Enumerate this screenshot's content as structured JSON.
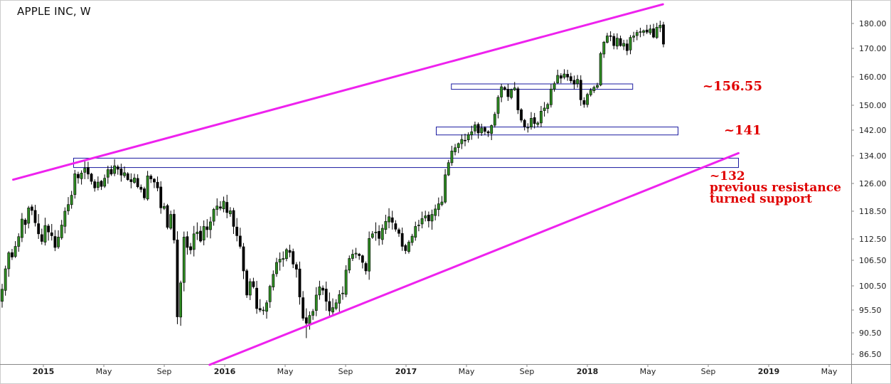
{
  "chart_data": {
    "type": "candlestick",
    "title": "APPLE INC, W",
    "y_ticks": [
      "180.00",
      "170.00",
      "160.00",
      "150.00",
      "142.00",
      "134.00",
      "126.00",
      "118.50",
      "112.50",
      "106.50",
      "100.50",
      "95.50",
      "90.50",
      "86.50"
    ],
    "y_tick_values": [
      180,
      170,
      160,
      150,
      142,
      134,
      126,
      118.5,
      112.5,
      106.5,
      100.5,
      95.5,
      90.5,
      86.5
    ],
    "x_ticks": [
      {
        "label": "2015",
        "bold": true,
        "date": "2015-01"
      },
      {
        "label": "May",
        "bold": false,
        "date": "2015-05"
      },
      {
        "label": "Sep",
        "bold": false,
        "date": "2015-09"
      },
      {
        "label": "2016",
        "bold": true,
        "date": "2016-01"
      },
      {
        "label": "May",
        "bold": false,
        "date": "2016-05"
      },
      {
        "label": "Sep",
        "bold": false,
        "date": "2016-09"
      },
      {
        "label": "2017",
        "bold": true,
        "date": "2017-01"
      },
      {
        "label": "May",
        "bold": false,
        "date": "2017-05"
      },
      {
        "label": "Sep",
        "bold": false,
        "date": "2017-09"
      },
      {
        "label": "2018",
        "bold": true,
        "date": "2018-01"
      },
      {
        "label": "May",
        "bold": false,
        "date": "2018-05"
      },
      {
        "label": "Sep",
        "bold": false,
        "date": "2018-09"
      },
      {
        "label": "2019",
        "bold": true,
        "date": "2019-01"
      },
      {
        "label": "May",
        "bold": false,
        "date": "2019-05"
      }
    ],
    "closes": [
      99.8,
      104.5,
      108.6,
      107.4,
      110.4,
      113.0,
      116.8,
      115.6,
      119.4,
      118.7,
      116.0,
      113.6,
      111.8,
      115.4,
      114.0,
      113.2,
      110.1,
      112.9,
      115.5,
      118.5,
      120.3,
      122.8,
      128.8,
      127.6,
      129.0,
      130.4,
      128.7,
      126.6,
      124.8,
      126.4,
      125.2,
      127.5,
      130.0,
      128.7,
      131.1,
      130.1,
      128.4,
      129.1,
      127.1,
      126.5,
      127.6,
      125.1,
      124.4,
      122.1,
      128.2,
      127.3,
      126.4,
      124.8,
      119.4,
      119.8,
      115.0,
      117.8,
      112.2,
      94.0,
      101.2,
      112.9,
      110.1,
      109.4,
      113.6,
      114.0,
      111.9,
      115.2,
      114.5,
      116.2,
      119.0,
      119.9,
      119.3,
      121.2,
      118.2,
      118.6,
      115.2,
      113.2,
      110.4,
      104.0,
      98.6,
      101.5,
      100.3,
      95.8,
      95.5,
      95.5,
      97.0,
      100.4,
      103.2,
      106.0,
      106.8,
      107.0,
      109.5,
      108.7,
      105.6,
      104.4,
      98.2,
      93.7,
      92.6,
      94.3,
      95.2,
      98.6,
      100.3,
      99.6,
      97.3,
      95.3,
      96.0,
      97.0,
      98.7,
      99.0,
      104.2,
      107.0,
      108.2,
      108.5,
      107.8,
      106.0,
      104.0,
      112.6,
      113.6,
      114.0,
      112.6,
      114.8,
      116.3,
      117.3,
      116.1,
      114.6,
      113.7,
      110.4,
      109.2,
      111.6,
      113.1,
      115.2,
      115.5,
      116.9,
      117.5,
      116.4,
      117.8,
      119.1,
      120.5,
      121.0,
      128.5,
      132.0,
      135.5,
      136.5,
      137.8,
      139.1,
      138.7,
      140.6,
      141.5,
      143.7,
      141.1,
      142.7,
      141.6,
      141.1,
      143.5,
      147.1,
      152.8,
      156.5,
      155.5,
      153.0,
      155.5,
      156.1,
      148.5,
      145.2,
      143.1,
      142.9,
      145.8,
      144.1,
      144.3,
      148.1,
      149.1,
      150.3,
      155.7,
      157.6,
      160.5,
      159.5,
      161.0,
      159.9,
      158.6,
      157.4,
      159.1,
      151.9,
      150.3,
      153.8,
      155.3,
      156.3,
      157.0,
      168.2,
      172.5,
      175.0,
      174.9,
      171.1,
      174.1,
      171.1,
      172.0,
      169.2,
      174.4,
      175.0,
      176.4,
      176.7,
      177.1,
      176.5,
      177.8,
      174.5,
      178.5,
      179.3,
      171.7
    ],
    "trendlines": [
      {
        "color": "#ee22ee",
        "from": {
          "date": "2014-11",
          "value": 127.1
        },
        "to": {
          "date": "2018-06",
          "value": 187.7
        }
      },
      {
        "color": "#ee22ee",
        "from": {
          "date": "2015-12",
          "value": 84.5
        },
        "to": {
          "date": "2018-11",
          "value": 134.8
        }
      }
    ],
    "zones": [
      {
        "from": {
          "date": "2017-04",
          "value": 157.5
        },
        "to": {
          "date": "2018-04",
          "value": 155.6
        }
      },
      {
        "from": {
          "date": "2017-03",
          "value": 143.0
        },
        "to": {
          "date": "2018-07",
          "value": 140.5
        }
      },
      {
        "from": {
          "date": "2015-03",
          "value": 133.3
        },
        "to": {
          "date": "2018-11",
          "value": 130.6
        }
      }
    ],
    "annotations": [
      {
        "text": "~156.55"
      },
      {
        "text": "~141"
      },
      {
        "lines": [
          "~132",
          "previous resistance",
          "turned support"
        ]
      }
    ],
    "colors": {
      "up": "#2e8b22",
      "down": "#000000",
      "trend": "#ee22ee",
      "zone": "#1a1aa0"
    }
  }
}
